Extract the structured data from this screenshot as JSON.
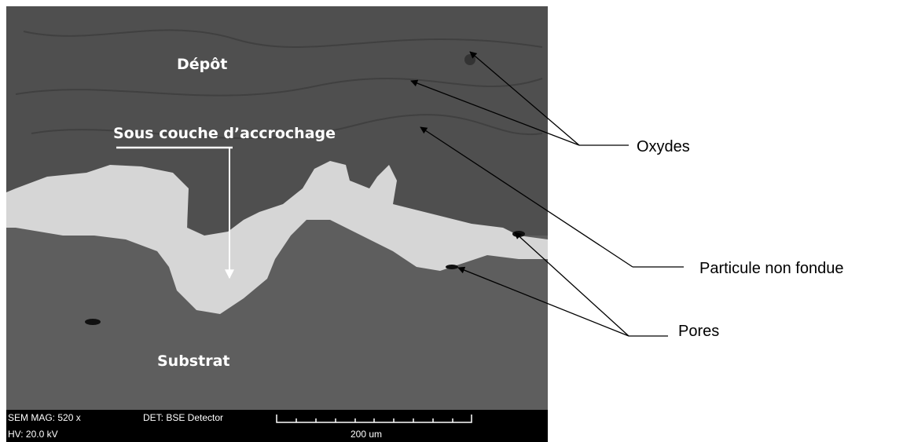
{
  "image": {
    "labels": {
      "deposit": "Dépôt",
      "bond_coat": "Sous couche d’accrochage",
      "substrate": "Substrat"
    },
    "info_bar": {
      "magnification": "SEM MAG: 520 x",
      "detector": "DET: BSE Detector",
      "voltage": "HV: 20.0 kV",
      "scale": "200 um"
    }
  },
  "annotations": {
    "oxides": "Oxydes",
    "unmelted_particle": "Particule non fondue",
    "pores": "Pores"
  }
}
